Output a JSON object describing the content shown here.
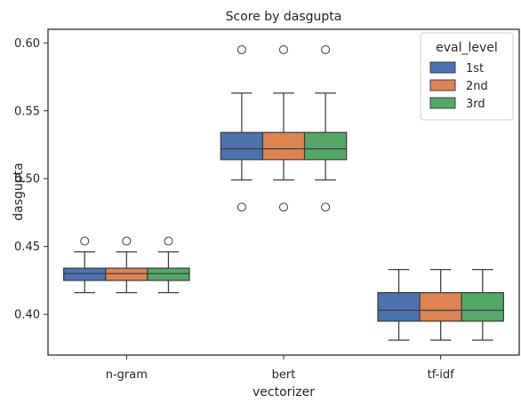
{
  "chart_data": {
    "type": "box",
    "title": "Score by dasgupta",
    "xlabel": "vectorizer",
    "ylabel": "dasgupta",
    "ylim": [
      0.37,
      0.61
    ],
    "yticks": [
      "0.40",
      "0.45",
      "0.50",
      "0.55",
      "0.60"
    ],
    "categories": [
      "n-gram",
      "bert",
      "tf-idf"
    ],
    "legend": {
      "title": "eval_level",
      "position": "top-right"
    },
    "grid": false,
    "series": [
      {
        "name": "1st",
        "color": "#4c72b0",
        "boxes": [
          {
            "whislo": 0.416,
            "q1": 0.425,
            "med": 0.43,
            "q3": 0.434,
            "whishi": 0.446,
            "fliers": [
              0.454
            ]
          },
          {
            "whislo": 0.499,
            "q1": 0.514,
            "med": 0.522,
            "q3": 0.534,
            "whishi": 0.563,
            "fliers": [
              0.479,
              0.595
            ]
          },
          {
            "whislo": 0.381,
            "q1": 0.395,
            "med": 0.403,
            "q3": 0.416,
            "whishi": 0.433,
            "fliers": []
          }
        ]
      },
      {
        "name": "2nd",
        "color": "#dd8452",
        "boxes": [
          {
            "whislo": 0.416,
            "q1": 0.425,
            "med": 0.43,
            "q3": 0.434,
            "whishi": 0.446,
            "fliers": [
              0.454
            ]
          },
          {
            "whislo": 0.499,
            "q1": 0.514,
            "med": 0.522,
            "q3": 0.534,
            "whishi": 0.563,
            "fliers": [
              0.479,
              0.595
            ]
          },
          {
            "whislo": 0.381,
            "q1": 0.395,
            "med": 0.403,
            "q3": 0.416,
            "whishi": 0.433,
            "fliers": []
          }
        ]
      },
      {
        "name": "3rd",
        "color": "#55a868",
        "boxes": [
          {
            "whislo": 0.416,
            "q1": 0.425,
            "med": 0.43,
            "q3": 0.434,
            "whishi": 0.446,
            "fliers": [
              0.454
            ]
          },
          {
            "whislo": 0.499,
            "q1": 0.514,
            "med": 0.522,
            "q3": 0.534,
            "whishi": 0.563,
            "fliers": [
              0.479,
              0.595
            ]
          },
          {
            "whislo": 0.381,
            "q1": 0.395,
            "med": 0.403,
            "q3": 0.416,
            "whishi": 0.433,
            "fliers": []
          }
        ]
      }
    ]
  }
}
